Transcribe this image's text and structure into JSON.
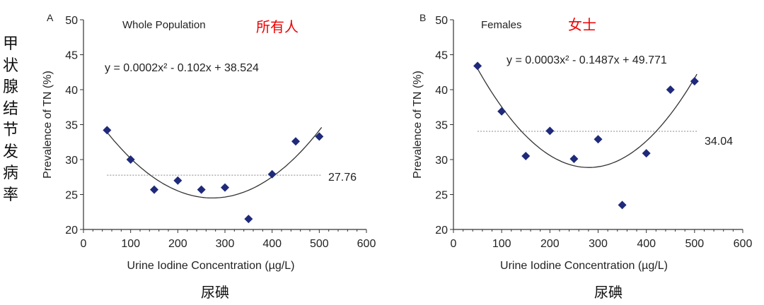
{
  "side_label": [
    "甲",
    "状",
    "腺",
    "结",
    "节",
    "发",
    "病",
    "率"
  ],
  "chart_data": [
    {
      "type": "scatter",
      "panel": "A",
      "title": "Whole Population",
      "annotation_cn": "所有人",
      "caption_cn": "尿碘",
      "equation": "y = 0.0002x² - 0.102x + 38.524",
      "mean_line": 27.76,
      "mean_label": "27.76",
      "xlabel": "Urine Iodine Concentration (µg/L)",
      "ylabel": "Prevalence of TN (%)",
      "xlim": [
        0,
        600
      ],
      "ylim": [
        20,
        50
      ],
      "xticks": [
        0,
        100,
        200,
        300,
        400,
        500,
        600
      ],
      "yticks": [
        20,
        25,
        30,
        35,
        40,
        45,
        50
      ],
      "x": [
        50,
        100,
        150,
        200,
        250,
        300,
        350,
        400,
        450,
        500
      ],
      "y": [
        34.2,
        30.0,
        25.7,
        27.0,
        25.7,
        26.0,
        21.5,
        27.9,
        32.6,
        33.3
      ],
      "fit": "quadratic",
      "marker_color": "#1f2a7a"
    },
    {
      "type": "scatter",
      "panel": "B",
      "title": "Females",
      "annotation_cn": "女士",
      "caption_cn": "尿碘",
      "equation": "y = 0.0003x² - 0.1487x + 49.771",
      "mean_line": 34.04,
      "mean_label": "34.04",
      "xlabel": "Urine Iodine Concentration (µg/L)",
      "ylabel": "Prevalence of TN (%)",
      "xlim": [
        0,
        600
      ],
      "ylim": [
        20,
        50
      ],
      "xticks": [
        0,
        100,
        200,
        300,
        400,
        500,
        600
      ],
      "yticks": [
        20,
        25,
        30,
        35,
        40,
        45,
        50
      ],
      "x": [
        50,
        100,
        150,
        200,
        250,
        300,
        350,
        400,
        450,
        500
      ],
      "y": [
        43.4,
        36.9,
        30.5,
        34.1,
        30.1,
        32.9,
        23.5,
        30.9,
        40.0,
        41.2
      ],
      "fit": "quadratic",
      "marker_color": "#1f2a7a"
    }
  ]
}
